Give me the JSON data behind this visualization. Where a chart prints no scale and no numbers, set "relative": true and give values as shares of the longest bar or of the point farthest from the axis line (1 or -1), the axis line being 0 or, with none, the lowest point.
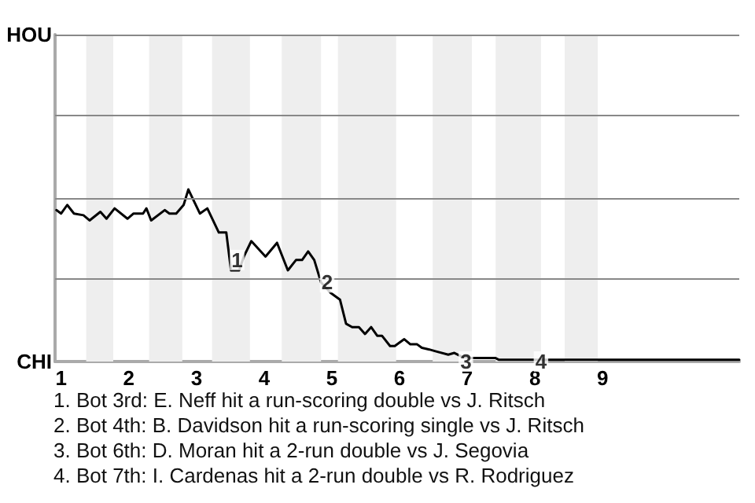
{
  "chart_data": {
    "type": "line",
    "relative": true,
    "x": [
      0.93,
      1,
      1.09,
      1.19,
      1.33,
      1.42,
      1.58,
      1.67,
      1.79,
      1.98,
      2.07,
      2.21,
      2.26,
      2.33,
      2.53,
      2.6,
      2.7,
      2.81,
      2.88,
      3.05,
      3.16,
      3.33,
      3.44,
      3.51,
      3.63,
      3.7,
      3.81,
      4.02,
      4.19,
      4.35,
      4.47,
      4.56,
      4.65,
      4.74,
      4.84,
      4.98,
      5.12,
      5.21,
      5.3,
      5.4,
      5.49,
      5.58,
      5.67,
      5.74,
      5.86,
      5.93,
      6.07,
      6.16,
      6.26,
      6.33,
      6.44,
      6.53,
      6.72,
      6.81,
      6.91,
      7.07,
      7.42,
      7.47,
      11.02
    ],
    "series": [
      {
        "color": "#000000",
        "values": [
          0.88,
          0.86,
          0.91,
          0.86,
          0.85,
          0.82,
          0.87,
          0.83,
          0.89,
          0.83,
          0.86,
          0.86,
          0.89,
          0.82,
          0.88,
          0.86,
          0.86,
          0.91,
          1,
          0.86,
          0.89,
          0.75,
          0.75,
          0.53,
          0.53,
          0.61,
          0.7,
          0.61,
          0.69,
          0.53,
          0.59,
          0.59,
          0.64,
          0.59,
          0.46,
          0.4,
          0.36,
          0.22,
          0.2,
          0.2,
          0.16,
          0.2,
          0.15,
          0.15,
          0.09,
          0.09,
          0.13,
          0.1,
          0.1,
          0.08,
          0.07,
          0.06,
          0.04,
          0.05,
          0.03,
          0.02,
          0.02,
          0.01,
          0.01
        ]
      }
    ],
    "xlim": [
      0.91,
      11.02
    ],
    "xticks": [
      1,
      2,
      3,
      4,
      5,
      6,
      7,
      8,
      9
    ],
    "grid": false,
    "marker": "none",
    "line_style": "solid",
    "ref_lines": [
      {
        "axis": "y",
        "value": 0.48,
        "color": "#888888"
      },
      {
        "axis": "y",
        "value": 0.95,
        "color": "#888888"
      },
      {
        "axis": "y",
        "value": 1.43,
        "color": "#888888"
      },
      {
        "axis": "y",
        "value": 1.9,
        "color": "#888888"
      }
    ],
    "bands": [
      {
        "axis": "x",
        "from": 1.37,
        "to": 1.77,
        "color": "#eeeeee"
      },
      {
        "axis": "x",
        "from": 2.3,
        "to": 2.79,
        "color": "#eeeeee"
      },
      {
        "axis": "x",
        "from": 3.23,
        "to": 3.79,
        "color": "#eeeeee"
      },
      {
        "axis": "x",
        "from": 4.26,
        "to": 4.84,
        "color": "#eeeeee"
      },
      {
        "axis": "x",
        "from": 5.09,
        "to": 5.95,
        "color": "#eeeeee"
      },
      {
        "axis": "x",
        "from": 6.49,
        "to": 7.07,
        "color": "#eeeeee"
      },
      {
        "axis": "x",
        "from": 7.42,
        "to": 8.09,
        "color": "#eeeeee"
      },
      {
        "axis": "x",
        "from": 8.44,
        "to": 8.93,
        "color": "#eeeeee"
      }
    ],
    "annotations": [
      "HOU",
      "CHI",
      {
        "text": "1",
        "x": 3.6,
        "y": 0.59
      },
      {
        "text": "2",
        "x": 4.93,
        "y": 0.46
      },
      {
        "text": "3",
        "x": 6.98,
        "y": 0
      },
      {
        "text": "4",
        "x": 8.09,
        "y": 0
      },
      "1. Bot 3rd: E. Neff hit a run-scoring double vs J. Ritsch",
      "2. Bot 4th: B. Davidson hit a run-scoring single vs J. Ritsch",
      "3. Bot 6th: D. Moran hit a 2-run double vs J. Segovia",
      "4. Bot 7th: I. Cardenas hit a 2-run double vs R. Rodriguez"
    ]
  }
}
